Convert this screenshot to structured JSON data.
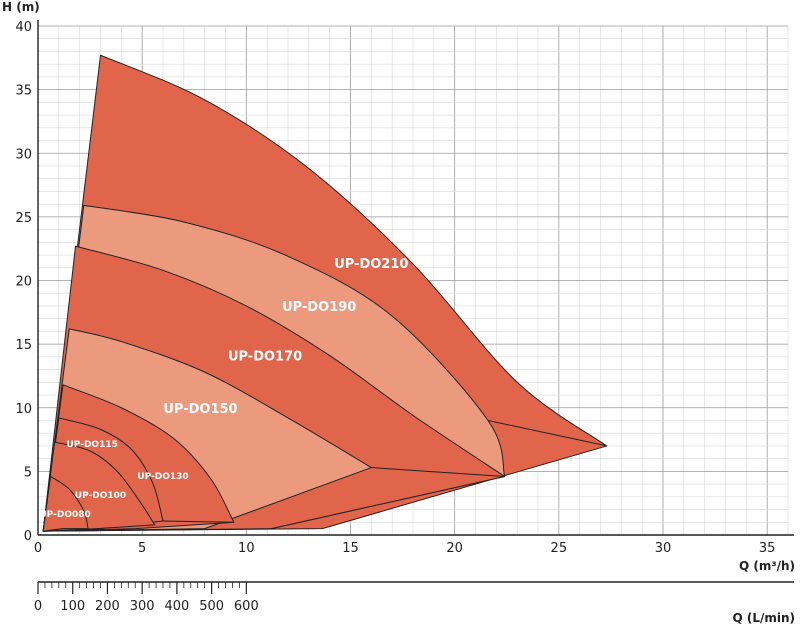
{
  "chart_data": {
    "type": "area",
    "title": "",
    "ylabel": "H (m)",
    "xlabel": "Q (m³/h)",
    "xlabel2": "Q (L/min)",
    "xlim": [
      0,
      36
    ],
    "ylim": [
      0,
      40
    ],
    "xticks": [
      0,
      5,
      10,
      15,
      20,
      25,
      30,
      35
    ],
    "yticks": [
      0,
      5,
      10,
      15,
      20,
      25,
      30,
      35,
      40
    ],
    "xticks2": [
      0,
      100,
      200,
      300,
      400,
      500,
      600
    ],
    "grid": true,
    "colors": {
      "dark": "#e0654b",
      "light": "#ec9a7d"
    },
    "series": [
      {
        "name": "UP-DO210",
        "shade": "dark",
        "label_pos": [
          16.0,
          21.0
        ],
        "outer": [
          [
            3.0,
            37.7
          ],
          [
            8.0,
            34.2
          ],
          [
            13.0,
            28.8
          ],
          [
            18.0,
            21.3
          ],
          [
            23.0,
            12.0
          ],
          [
            27.3,
            7.0
          ]
        ],
        "inner_end": [
          21.6,
          9.0
        ]
      },
      {
        "name": "UP-DO190",
        "shade": "light",
        "label_pos": [
          13.5,
          17.6
        ],
        "outer": [
          [
            2.2,
            25.9
          ],
          [
            7.0,
            24.6
          ],
          [
            12.0,
            21.9
          ],
          [
            17.0,
            17.2
          ],
          [
            21.6,
            9.0
          ],
          [
            22.4,
            4.6
          ]
        ]
      },
      {
        "name": "UP-DO170",
        "shade": "dark",
        "label_pos": [
          10.9,
          13.7
        ],
        "outer": [
          [
            1.8,
            22.7
          ],
          [
            6.0,
            20.8
          ],
          [
            10.0,
            18.0
          ],
          [
            14.0,
            14.1
          ],
          [
            18.0,
            9.4
          ],
          [
            22.4,
            4.6
          ]
        ],
        "inner_end": [
          16.0,
          5.3
        ]
      },
      {
        "name": "UP-DO150",
        "shade": "light",
        "label_pos": [
          7.8,
          9.6
        ],
        "outer": [
          [
            1.5,
            16.2
          ],
          [
            4.0,
            15.2
          ],
          [
            8.0,
            12.8
          ],
          [
            12.0,
            9.2
          ],
          [
            16.0,
            5.3
          ]
        ]
      },
      {
        "name": "UP-DO130",
        "shade": "dark",
        "label_pos": [
          6.0,
          4.4
        ],
        "outer": [
          [
            1.2,
            11.8
          ],
          [
            4.0,
            10.0
          ],
          [
            6.5,
            7.6
          ],
          [
            8.3,
            4.4
          ],
          [
            9.4,
            1.0
          ]
        ],
        "inner_end": [
          6.0,
          1.1
        ]
      },
      {
        "name": "UP-DO115",
        "shade": "dark",
        "label_pos": [
          2.6,
          6.9
        ],
        "outer": [
          [
            1.0,
            9.2
          ],
          [
            3.0,
            8.3
          ],
          [
            4.5,
            6.7
          ],
          [
            5.5,
            4.1
          ],
          [
            6.0,
            1.1
          ]
        ]
      },
      {
        "name": "UP-DO100",
        "shade": "dark",
        "label_pos": [
          3.0,
          2.9
        ],
        "outer": [
          [
            0.8,
            7.3
          ],
          [
            2.5,
            6.6
          ],
          [
            3.8,
            5.0
          ],
          [
            4.9,
            2.6
          ],
          [
            5.6,
            0.8
          ]
        ]
      },
      {
        "name": "UP-DO080",
        "shade": "dark",
        "label_pos": [
          1.3,
          1.4
        ],
        "outer": [
          [
            0.6,
            4.6
          ],
          [
            1.5,
            3.6
          ],
          [
            2.2,
            1.9
          ],
          [
            2.4,
            0.5
          ]
        ]
      }
    ]
  }
}
